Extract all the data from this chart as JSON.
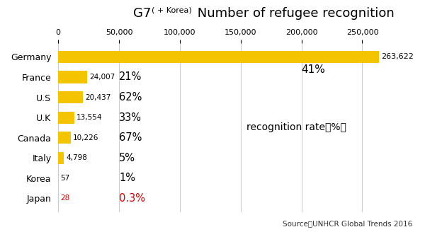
{
  "title_part1": "G7",
  "title_part2": "( + Korea)",
  "title_part3": " Number of refugee recognition",
  "countries": [
    "Germany",
    "France",
    "U.S",
    "U.K",
    "Canada",
    "Italy",
    "Korea",
    "Japan"
  ],
  "values": [
    263622,
    24007,
    20437,
    13554,
    10226,
    4798,
    57,
    28
  ],
  "bar_color": "#F5C400",
  "value_labels": [
    "263,622",
    "24,007",
    "20,437",
    "13,554",
    "10,226",
    "4,798",
    "57",
    "28"
  ],
  "rate_labels": [
    "41%",
    "21%",
    "62%",
    "33%",
    "67%",
    "5%",
    "1%",
    "0.3%"
  ],
  "rate_colors": [
    "#000000",
    "#000000",
    "#000000",
    "#000000",
    "#000000",
    "#000000",
    "#000000",
    "#cc0000"
  ],
  "value_colors": [
    "#000000",
    "#000000",
    "#000000",
    "#000000",
    "#000000",
    "#000000",
    "#000000",
    "#cc0000"
  ],
  "xlim": [
    0,
    280000
  ],
  "xticks": [
    0,
    50000,
    100000,
    150000,
    200000,
    250000
  ],
  "xticklabels": [
    "0",
    "50,000",
    "100,000",
    "150,000",
    "200,000",
    "250,000"
  ],
  "recognition_rate_label": "recognition rate（%）",
  "source_label": "Source：UNHCR Global Trends 2016",
  "bg_color": "#ffffff",
  "bar_height": 0.6
}
